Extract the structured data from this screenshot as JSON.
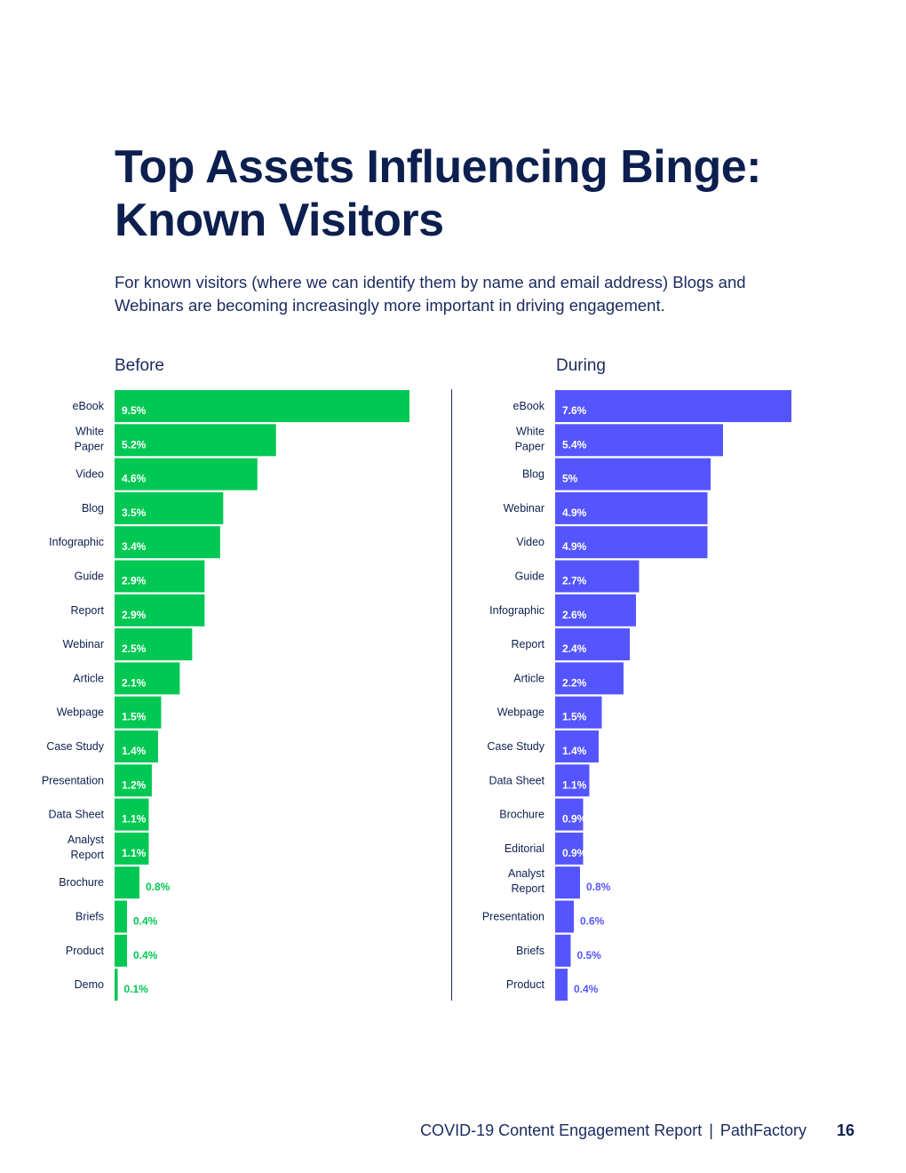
{
  "page": {
    "title_line1": "Top Assets Influencing Binge:",
    "title_line2": "Known Visitors",
    "intro": "For known visitors (where we can identify them by name and email address) Blogs and Webinars are becoming increasingly more important in driving engagement.",
    "footer_report": "COVID-19 Content Engagement Report",
    "footer_separator": "|",
    "footer_brand": "PathFactory",
    "page_number": "16"
  },
  "colors": {
    "before": "#00c853",
    "during": "#5555ff",
    "text": "#0c1f4f"
  },
  "chart_data": [
    {
      "type": "bar",
      "orientation": "horizontal",
      "title": "Before",
      "unit": "%",
      "categories": [
        "eBook",
        "White Paper",
        "Video",
        "Blog",
        "Infographic",
        "Guide",
        "Report",
        "Webinar",
        "Article",
        "Webpage",
        "Case Study",
        "Presentation",
        "Data Sheet",
        "Analyst Report",
        "Brochure",
        "Briefs",
        "Product",
        "Demo"
      ],
      "values": [
        9.5,
        5.2,
        4.6,
        3.5,
        3.4,
        2.9,
        2.9,
        2.5,
        2.1,
        1.5,
        1.4,
        1.2,
        1.1,
        1.1,
        0.8,
        0.4,
        0.4,
        0.1
      ],
      "labels": [
        "9.5%",
        "5.2%",
        "4.6%",
        "3.5%",
        "3.4%",
        "2.9%",
        "2.9%",
        "2.5%",
        "2.1%",
        "1.5%",
        "1.4%",
        "1.2%",
        "1.1%",
        "1.1%",
        "0.8%",
        "0.4%",
        "0.4%",
        "0.1%"
      ],
      "xlim": [
        0,
        9.5
      ]
    },
    {
      "type": "bar",
      "orientation": "horizontal",
      "title": "During",
      "unit": "%",
      "categories": [
        "eBook",
        "White Paper",
        "Blog",
        "Webinar",
        "Video",
        "Guide",
        "Infographic",
        "Report",
        "Article",
        "Webpage",
        "Case Study",
        "Data Sheet",
        "Brochure",
        "Editorial",
        "Analyst Report",
        "Presentation",
        "Briefs",
        "Product"
      ],
      "values": [
        7.6,
        5.4,
        5.0,
        4.9,
        4.9,
        2.7,
        2.6,
        2.4,
        2.2,
        1.5,
        1.4,
        1.1,
        0.9,
        0.9,
        0.8,
        0.6,
        0.5,
        0.4
      ],
      "labels": [
        "7.6%",
        "5.4%",
        "5%",
        "4.9%",
        "4.9%",
        "2.7%",
        "2.6%",
        "2.4%",
        "2.2%",
        "1.5%",
        "1.4%",
        "1.1%",
        "0.9%",
        "0.9%",
        "0.8%",
        "0.6%",
        "0.5%",
        "0.4%"
      ],
      "xlim": [
        0,
        7.6
      ]
    }
  ]
}
